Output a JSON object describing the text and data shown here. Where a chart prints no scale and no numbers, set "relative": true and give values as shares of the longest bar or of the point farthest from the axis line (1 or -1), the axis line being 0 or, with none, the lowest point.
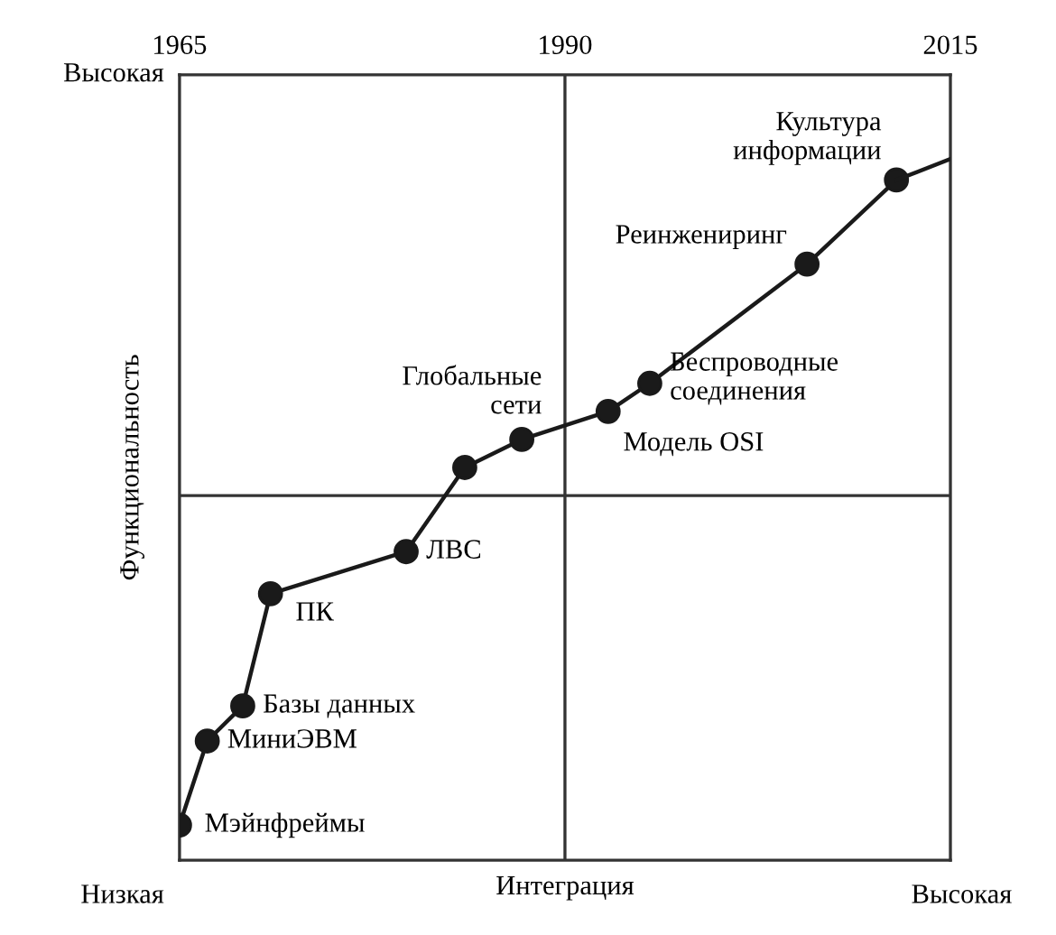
{
  "chart_data": {
    "type": "line",
    "relative": true,
    "xlabel": "Интеграция",
    "ylabel": "Функциональность",
    "xlim": [
      1965,
      2015
    ],
    "xticks": [
      1965,
      1990,
      2015
    ],
    "marker": "circle",
    "line_style": "solid",
    "series": [
      {
        "color": "#1a1a1a",
        "x": [
          1965,
          1966.8,
          1969.1,
          1970.9,
          1979.7,
          1983.5,
          1987.2,
          1992.8,
          1995.5,
          2005.7,
          2011.5
        ],
        "values": [
          0.05,
          0.17,
          0.22,
          0.38,
          0.44,
          0.56,
          0.6,
          0.64,
          0.68,
          0.85,
          0.97
        ]
      },
      {
        "color": "#1a1a1a",
        "marker": "none",
        "x": [
          2011.5,
          2015
        ],
        "values": [
          0.97,
          1.0
        ]
      }
    ],
    "ref_lines": [
      {
        "axis": "x",
        "value": 1990,
        "color": "#333333"
      },
      {
        "axis": "y",
        "value": 0.52,
        "color": "#333333"
      }
    ],
    "annotations": [
      "Высокая",
      "Низкая",
      "Высокая",
      {
        "text": "Мэйнфреймы",
        "x": 1965,
        "y": 0.05
      },
      {
        "text": "МиниЭВМ",
        "x": 1966.8,
        "y": 0.17
      },
      {
        "text": "Базы данных",
        "x": 1969.1,
        "y": 0.22
      },
      {
        "text": "ПК",
        "x": 1970.9,
        "y": 0.38
      },
      {
        "text": "ЛВС",
        "x": 1979.7,
        "y": 0.44
      },
      {
        "text": "Глобальные\nсети",
        "x": 1987.2,
        "y": 0.6
      },
      {
        "text": "Модель OSI",
        "x": 1992.8,
        "y": 0.64
      },
      {
        "text": "Беспроводные\nсоединения",
        "x": 1995.5,
        "y": 0.68
      },
      {
        "text": "Реинжениринг",
        "x": 2005.7,
        "y": 0.85
      },
      {
        "text": "Культура\nинформации",
        "x": 2011.5,
        "y": 0.97
      }
    ]
  }
}
